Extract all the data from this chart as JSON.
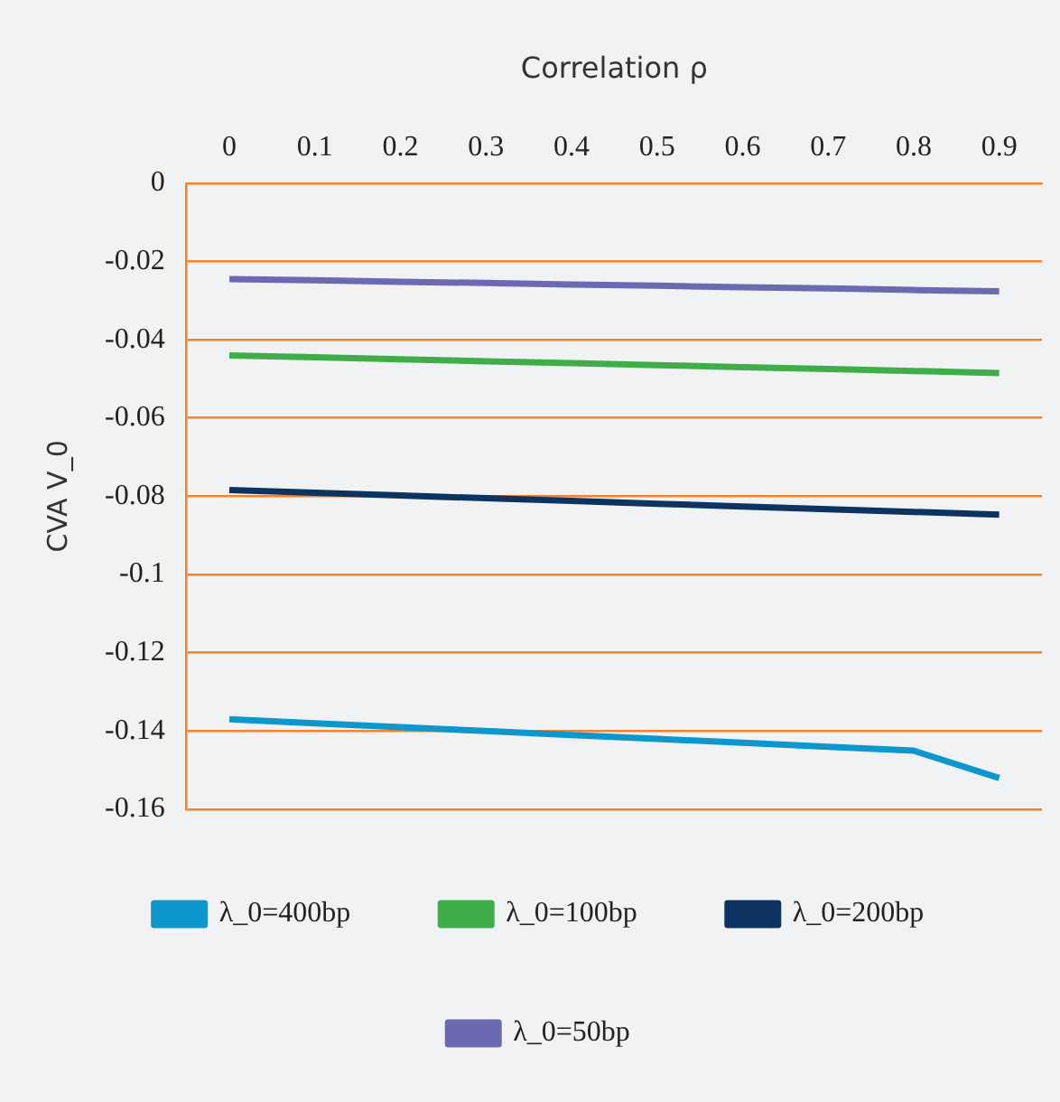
{
  "chart_data": {
    "type": "line",
    "xlabel": "Correlation ρ",
    "ylabel": "CVA V_0",
    "categories": [
      "0",
      "0.1",
      "0.2",
      "0.3",
      "0.4",
      "0.5",
      "0.6",
      "0.7",
      "0.8",
      "0.9"
    ],
    "series": [
      {
        "name": "λ_0=400bp",
        "color": "#0e97cd",
        "values": [
          -0.137,
          -0.138,
          -0.139,
          -0.14,
          -0.141,
          -0.142,
          -0.143,
          -0.144,
          -0.145,
          -0.152
        ]
      },
      {
        "name": "λ_0=100bp",
        "color": "#3fae49",
        "values": [
          -0.044,
          -0.0445,
          -0.045,
          -0.0455,
          -0.046,
          -0.0465,
          -0.047,
          -0.0475,
          -0.048,
          -0.0485
        ]
      },
      {
        "name": "λ_0=200bp",
        "color": "#0d3360",
        "values": [
          -0.0784,
          -0.0791,
          -0.0798,
          -0.0805,
          -0.0812,
          -0.0819,
          -0.0826,
          -0.0833,
          -0.084,
          -0.0847
        ]
      },
      {
        "name": "λ_0=50bp",
        "color": "#6a69b2",
        "values": [
          -0.0245,
          -0.0248,
          -0.0252,
          -0.0255,
          -0.0259,
          -0.0262,
          -0.0266,
          -0.0269,
          -0.0273,
          -0.0276
        ]
      }
    ],
    "ylim": [
      -0.16,
      0
    ],
    "yticks": [
      0,
      -0.02,
      -0.04,
      -0.06,
      -0.08,
      -0.1,
      -0.12,
      -0.14,
      -0.16
    ],
    "grid": "y",
    "legend": "bottom",
    "marker": "none",
    "line_style": "solid"
  }
}
